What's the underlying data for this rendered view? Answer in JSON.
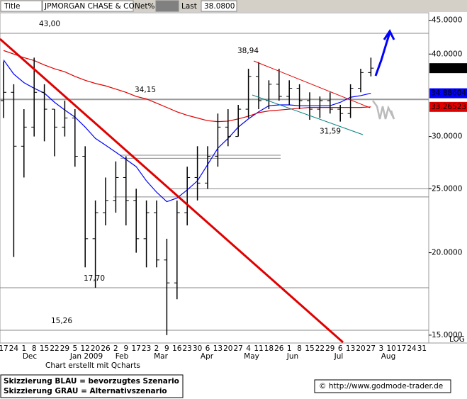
{
  "header": {
    "title_label": "Title",
    "symbol": "JPMORGAN CHASE & CO",
    "net_label": "Net%",
    "last_label": "Last",
    "last": "38.0800"
  },
  "chart_data": {
    "type": "ohlc",
    "categories": [
      "17",
      "24",
      "1",
      "8",
      "15",
      "22",
      "29",
      "5",
      "12",
      "20",
      "26",
      "2",
      "9",
      "17",
      "23",
      "2",
      "9",
      "16",
      "23",
      "30",
      "6",
      "13",
      "20",
      "27",
      "4",
      "11",
      "18",
      "26",
      "1",
      "8",
      "15",
      "22",
      "29",
      "6",
      "13",
      "20",
      "27",
      "3",
      "10",
      "17",
      "24",
      "31"
    ],
    "months": [
      "Dec",
      "Jan 2009",
      "Feb",
      "Mar",
      "Apr",
      "May",
      "Jun",
      "Jul",
      "Aug"
    ],
    "open": [
      34,
      35,
      29,
      31,
      35,
      33,
      31,
      32,
      28,
      21,
      23,
      24,
      26,
      24,
      21,
      23,
      19.5,
      18,
      23,
      26,
      25.5,
      28,
      31,
      30,
      33,
      37,
      34,
      36,
      34.5,
      35.5,
      34,
      33,
      34,
      33,
      32.5,
      35.5,
      37.5,
      null,
      null,
      null,
      null,
      null
    ],
    "high": [
      39,
      36,
      33,
      39.5,
      36,
      33,
      34,
      33,
      29,
      24,
      26,
      27.5,
      28,
      25,
      24,
      24,
      21,
      24,
      27,
      29,
      29,
      32.5,
      33,
      33.5,
      38,
      38.9,
      36.5,
      38,
      36.5,
      36,
      35,
      34.5,
      35,
      33.5,
      36,
      38,
      39.5,
      null,
      null,
      null,
      null,
      null
    ],
    "low": [
      32,
      19.7,
      26,
      30,
      29.5,
      28,
      30,
      27,
      19,
      17.7,
      22,
      23,
      22,
      20,
      19,
      19,
      15,
      17,
      22,
      24,
      25,
      27,
      29,
      30,
      32,
      33,
      33,
      34,
      33.5,
      33,
      31.8,
      32,
      32.5,
      31.6,
      32,
      35,
      37,
      null,
      null,
      null,
      null,
      null
    ],
    "close": [
      35,
      29,
      31,
      35,
      33,
      31,
      32,
      28,
      21,
      23,
      24,
      26,
      24,
      21,
      23,
      19.5,
      18,
      23,
      26,
      25.5,
      28,
      31,
      30,
      33,
      37,
      34,
      36,
      34.5,
      35.5,
      34,
      33,
      34,
      33,
      32.5,
      35.5,
      37.5,
      38.08,
      null,
      null,
      null,
      null,
      null
    ],
    "lines": [
      {
        "color": "#0000ff",
        "values": [
          39.2,
          37.3,
          36.2,
          35.5,
          34.9,
          33.8,
          32.9,
          32.1,
          31.0,
          29.8,
          29.1,
          28.4,
          27.7,
          27.0,
          25.7,
          24.7,
          23.9,
          24.2,
          24.9,
          25.7,
          27.2,
          28.8,
          29.8,
          31.0,
          31.9,
          32.7,
          33.4,
          33.5,
          33.5,
          33.4,
          33.4,
          33.4,
          33.4,
          33.8,
          34.4,
          34.6,
          34.88604,
          null,
          null,
          null,
          null,
          null
        ]
      },
      {
        "color": "#e00000",
        "values": [
          40.5,
          40.0,
          39.5,
          39.1,
          38.5,
          38.0,
          37.6,
          37.0,
          36.5,
          36.1,
          35.8,
          35.4,
          35.0,
          34.5,
          34.2,
          33.7,
          33.2,
          32.7,
          32.3,
          32.0,
          31.7,
          31.6,
          31.65,
          31.9,
          32.2,
          32.6,
          32.8,
          32.9,
          33.0,
          33.1,
          33.2,
          33.2,
          33.2,
          33.2,
          33.2,
          33.2,
          33.26523,
          null,
          null,
          null,
          null,
          null
        ]
      }
    ],
    "last_labels": [
      {
        "value": 38.08,
        "label": "38.0800",
        "color": "#000000"
      },
      {
        "value": 34.88604,
        "label": "34.88604",
        "color": "#0000ff"
      },
      {
        "value": 33.26523,
        "label": "33.26523",
        "color": "#e00000"
      }
    ],
    "levels": [
      {
        "value": 43,
        "label": "43,00"
      },
      {
        "value": 34.15,
        "label": "34,15"
      },
      {
        "value": 17.7,
        "label": "17,70"
      },
      {
        "value": 15.26,
        "label": "15,26"
      }
    ],
    "annotations": [
      {
        "value": 38.94,
        "label": "38,94"
      },
      {
        "value": 31.59,
        "label": "31,59"
      }
    ],
    "support_lines": [
      28.1,
      27.8,
      25.0,
      24.3
    ],
    "log_scale": true,
    "scale_label": "LOG",
    "ylim": [
      14.63,
      46.2
    ],
    "yticks": [
      {
        "value": 15,
        "label": "15.0000"
      },
      {
        "value": 20,
        "label": "20.0000"
      },
      {
        "value": 25,
        "label": "25.0000"
      },
      {
        "value": 30,
        "label": "30.0000"
      },
      {
        "value": 40,
        "label": "40.0000"
      },
      {
        "value": 45,
        "label": "45.0000"
      }
    ]
  },
  "footer": {
    "credit": "Chart erstellt mit Qcharts",
    "legend_blue": "Skizzierung BLAU = bevorzugtes Szenario",
    "legend_gray": "Skizzierung GRAU = Alternativszenario",
    "url": "© http://www.godmode-trader.de"
  }
}
